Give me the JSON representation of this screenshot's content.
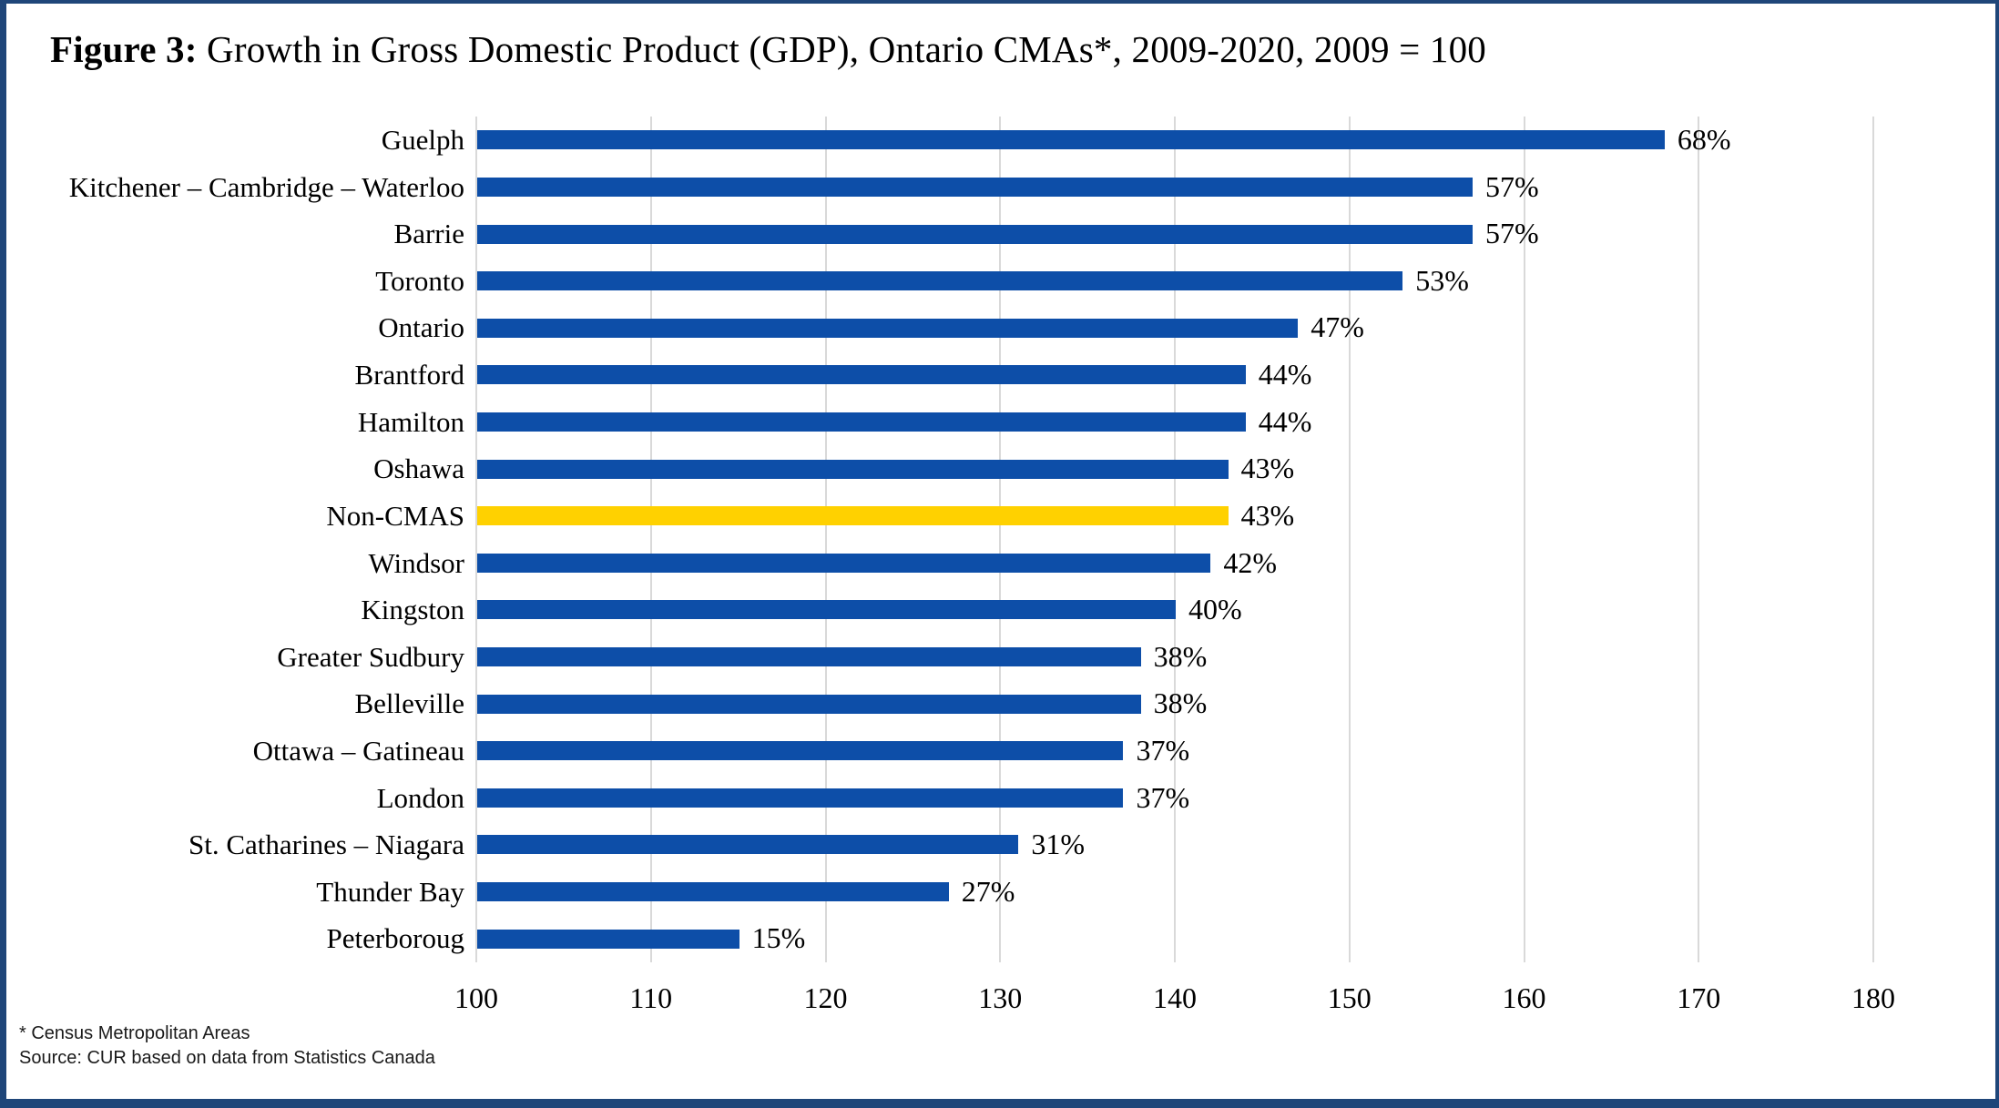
{
  "figure": {
    "title_prefix": "Figure 3:",
    "title_rest": " Growth in Gross Domestic Product (GDP), Ontario CMAs*, 2009-2020, 2009 = 100"
  },
  "footnotes": {
    "asterisk": "* Census Metropolitan Areas",
    "source": "Source: CUR based on data from Statistics Canada"
  },
  "colors": {
    "bar": "#0D4EA8",
    "highlight": "#FFD100",
    "frame": "#1F4679",
    "gridline": "#D9D9D9"
  },
  "chart_data": {
    "type": "bar",
    "orientation": "horizontal",
    "title": "Figure 3: Growth in Gross Domestic Product (GDP), Ontario CMAs*, 2009-2020, 2009 = 100",
    "xlabel": "",
    "ylabel": "",
    "xlim": [
      100,
      180
    ],
    "x_ticks": [
      100,
      110,
      120,
      130,
      140,
      150,
      160,
      170,
      180
    ],
    "grid": "vertical",
    "legend": "none",
    "categories": [
      "Guelph",
      "Kitchener – Cambridge – Waterloo",
      "Barrie",
      "Toronto",
      "Ontario",
      "Brantford",
      "Hamilton",
      "Oshawa",
      "Non-CMAS",
      "Windsor",
      "Kingston",
      "Greater Sudbury",
      "Belleville",
      "Ottawa – Gatineau",
      "London",
      "St. Catharines – Niagara",
      "Thunder Bay",
      "Peterboroug"
    ],
    "values": [
      168,
      157,
      157,
      153,
      147,
      144,
      144,
      143,
      143,
      142,
      140,
      138,
      138,
      137,
      137,
      131,
      127,
      115
    ],
    "data_labels": [
      "68%",
      "57%",
      "57%",
      "53%",
      "47%",
      "44%",
      "44%",
      "43%",
      "43%",
      "42%",
      "40%",
      "38%",
      "38%",
      "37%",
      "37%",
      "31%",
      "27%",
      "15%"
    ],
    "highlight_category": "Non-CMAS",
    "highlight_index": 8
  }
}
